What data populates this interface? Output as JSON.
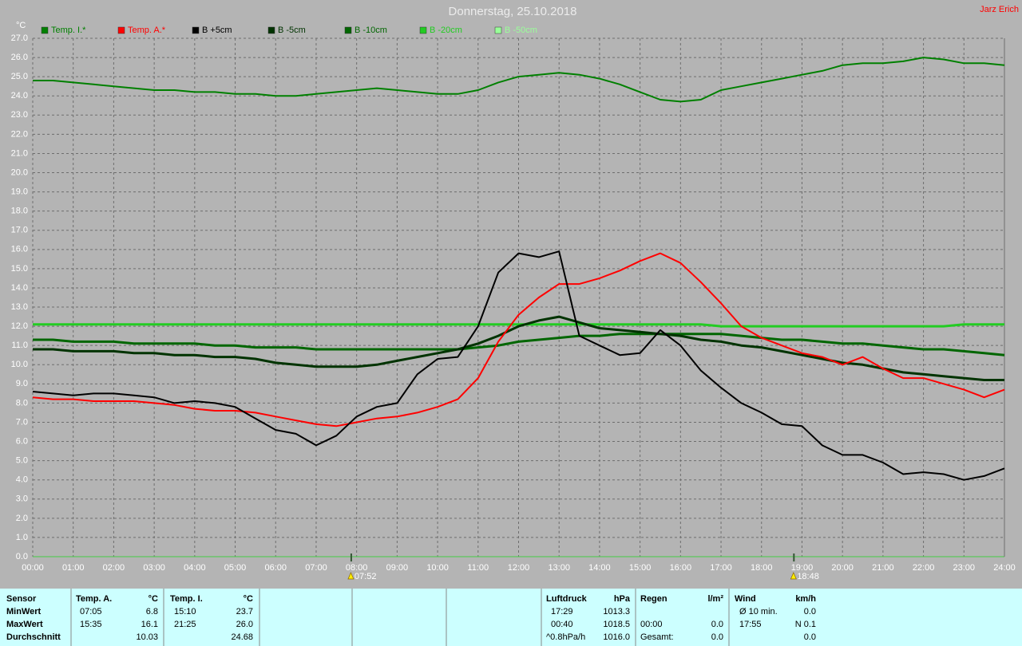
{
  "chart_data": {
    "type": "line",
    "title": "Donnerstag, 25.10.2018",
    "user": "Jarz Erich",
    "y_label": "°C",
    "grid": true,
    "x": [
      0,
      0.5,
      1,
      1.5,
      2,
      2.5,
      3,
      3.5,
      4,
      4.5,
      5,
      5.5,
      6,
      6.5,
      7,
      7.5,
      8,
      8.5,
      9,
      9.5,
      10,
      10.5,
      11,
      11.5,
      12,
      12.5,
      13,
      13.5,
      14,
      14.5,
      15,
      15.5,
      16,
      16.5,
      17,
      17.5,
      18,
      18.5,
      19,
      19.5,
      20,
      20.5,
      21,
      21.5,
      22,
      22.5,
      23,
      23.5,
      24
    ],
    "xlim": [
      0,
      24
    ],
    "xticks": [
      {
        "value": 0,
        "label": "00:00"
      },
      {
        "value": 1,
        "label": "01:00"
      },
      {
        "value": 2,
        "label": "02:00"
      },
      {
        "value": 3,
        "label": "03:00"
      },
      {
        "value": 4,
        "label": "04:00"
      },
      {
        "value": 5,
        "label": "05:00"
      },
      {
        "value": 6,
        "label": "06:00"
      },
      {
        "value": 7,
        "label": "07:00"
      },
      {
        "value": 8,
        "label": "08:00"
      },
      {
        "value": 9,
        "label": "09:00"
      },
      {
        "value": 10,
        "label": "10:00"
      },
      {
        "value": 11,
        "label": "11:00"
      },
      {
        "value": 12,
        "label": "12:00"
      },
      {
        "value": 13,
        "label": "13:00"
      },
      {
        "value": 14,
        "label": "14:00"
      },
      {
        "value": 15,
        "label": "15:00"
      },
      {
        "value": 16,
        "label": "16:00"
      },
      {
        "value": 17,
        "label": "17:00"
      },
      {
        "value": 18,
        "label": "18:00"
      },
      {
        "value": 19,
        "label": "19:00"
      },
      {
        "value": 20,
        "label": "20:00"
      },
      {
        "value": 21,
        "label": "21:00"
      },
      {
        "value": 22,
        "label": "22:00"
      },
      {
        "value": 23,
        "label": "23:00"
      },
      {
        "value": 24,
        "label": "24:00"
      }
    ],
    "ylim": [
      0,
      27
    ],
    "yticks": [
      {
        "value": 0,
        "label": "0.0"
      },
      {
        "value": 1,
        "label": "1.0"
      },
      {
        "value": 2,
        "label": "2.0"
      },
      {
        "value": 3,
        "label": "3.0"
      },
      {
        "value": 4,
        "label": "4.0"
      },
      {
        "value": 5,
        "label": "5.0"
      },
      {
        "value": 6,
        "label": "6.0"
      },
      {
        "value": 7,
        "label": "7.0"
      },
      {
        "value": 8,
        "label": "8.0"
      },
      {
        "value": 9,
        "label": "9.0"
      },
      {
        "value": 10,
        "label": "10.0"
      },
      {
        "value": 11,
        "label": "11.0"
      },
      {
        "value": 12,
        "label": "12.0"
      },
      {
        "value": 13,
        "label": "13.0"
      },
      {
        "value": 14,
        "label": "14.0"
      },
      {
        "value": 15,
        "label": "15.0"
      },
      {
        "value": 16,
        "label": "16.0"
      },
      {
        "value": 17,
        "label": "17.0"
      },
      {
        "value": 18,
        "label": "18.0"
      },
      {
        "value": 19,
        "label": "19.0"
      },
      {
        "value": 20,
        "label": "20.0"
      },
      {
        "value": 21,
        "label": "21.0"
      },
      {
        "value": 22,
        "label": "22.0"
      },
      {
        "value": 23,
        "label": "23.0"
      },
      {
        "value": 24,
        "label": "24.0"
      },
      {
        "value": 25,
        "label": "25.0"
      },
      {
        "value": 26,
        "label": "26.0"
      },
      {
        "value": 27,
        "label": "27.0"
      }
    ],
    "series": [
      {
        "name": "Temp. I.*",
        "color": "#008000",
        "values": [
          24.8,
          24.8,
          24.7,
          24.6,
          24.5,
          24.4,
          24.3,
          24.3,
          24.2,
          24.2,
          24.1,
          24.1,
          24.0,
          24.0,
          24.1,
          24.2,
          24.3,
          24.4,
          24.3,
          24.2,
          24.1,
          24.1,
          24.3,
          24.7,
          25.0,
          25.1,
          25.2,
          25.1,
          24.9,
          24.6,
          24.2,
          23.8,
          23.7,
          23.8,
          24.3,
          24.5,
          24.7,
          24.9,
          25.1,
          25.3,
          25.6,
          25.7,
          25.7,
          25.8,
          26.0,
          25.9,
          25.7,
          25.7,
          25.6
        ]
      },
      {
        "name": "Temp. A.*",
        "color": "#ff0000",
        "values": [
          8.3,
          8.2,
          8.2,
          8.1,
          8.1,
          8.1,
          8.0,
          7.9,
          7.7,
          7.6,
          7.6,
          7.5,
          7.3,
          7.1,
          6.9,
          6.8,
          7.0,
          7.2,
          7.3,
          7.5,
          7.8,
          8.2,
          9.3,
          11.2,
          12.6,
          13.5,
          14.2,
          14.2,
          14.5,
          14.9,
          15.4,
          15.8,
          15.3,
          14.3,
          13.2,
          12.0,
          11.4,
          11.0,
          10.6,
          10.4,
          10.0,
          10.4,
          9.8,
          9.3,
          9.3,
          9.0,
          8.7,
          8.3,
          8.7
        ]
      },
      {
        "name": "B +5cm",
        "color": "#000000",
        "values": [
          8.6,
          8.5,
          8.4,
          8.5,
          8.5,
          8.4,
          8.3,
          8.0,
          8.1,
          8.0,
          7.8,
          7.2,
          6.6,
          6.4,
          5.8,
          6.3,
          7.3,
          7.8,
          8.0,
          9.5,
          10.3,
          10.4,
          12.0,
          14.8,
          15.8,
          15.6,
          15.9,
          11.5,
          11.0,
          10.5,
          10.6,
          11.8,
          11.0,
          9.7,
          8.8,
          8.0,
          7.5,
          6.9,
          6.8,
          5.8,
          5.3,
          5.3,
          4.9,
          4.3,
          4.4,
          4.3,
          4.0,
          4.2,
          4.6
        ]
      },
      {
        "name": "B -5cm",
        "color": "#003300",
        "values": [
          10.8,
          10.8,
          10.7,
          10.7,
          10.7,
          10.6,
          10.6,
          10.5,
          10.5,
          10.4,
          10.4,
          10.3,
          10.1,
          10.0,
          9.9,
          9.9,
          9.9,
          10.0,
          10.2,
          10.4,
          10.6,
          10.8,
          11.1,
          11.5,
          12.0,
          12.3,
          12.5,
          12.2,
          11.9,
          11.8,
          11.7,
          11.6,
          11.5,
          11.3,
          11.2,
          11.0,
          10.9,
          10.7,
          10.5,
          10.3,
          10.1,
          10.0,
          9.8,
          9.6,
          9.5,
          9.4,
          9.3,
          9.2,
          9.2
        ]
      },
      {
        "name": "B -10cm",
        "color": "#006600",
        "values": [
          11.3,
          11.3,
          11.2,
          11.2,
          11.2,
          11.1,
          11.1,
          11.1,
          11.1,
          11.0,
          11.0,
          10.9,
          10.9,
          10.9,
          10.8,
          10.8,
          10.8,
          10.8,
          10.8,
          10.8,
          10.8,
          10.8,
          10.9,
          11.0,
          11.2,
          11.3,
          11.4,
          11.5,
          11.5,
          11.6,
          11.6,
          11.6,
          11.6,
          11.6,
          11.6,
          11.5,
          11.4,
          11.3,
          11.3,
          11.2,
          11.1,
          11.1,
          11.0,
          10.9,
          10.8,
          10.8,
          10.7,
          10.6,
          10.5
        ]
      },
      {
        "name": "B -20cm",
        "color": "#22cc22",
        "values": [
          12.1,
          12.1,
          12.1,
          12.1,
          12.1,
          12.1,
          12.1,
          12.1,
          12.1,
          12.1,
          12.1,
          12.1,
          12.1,
          12.1,
          12.1,
          12.1,
          12.1,
          12.1,
          12.1,
          12.1,
          12.1,
          12.1,
          12.1,
          12.1,
          12.1,
          12.1,
          12.1,
          12.1,
          12.1,
          12.1,
          12.1,
          12.1,
          12.1,
          12.1,
          12.0,
          12.0,
          12.0,
          12.0,
          12.0,
          12.0,
          12.0,
          12.0,
          12.0,
          12.0,
          12.0,
          12.0,
          12.1,
          12.1,
          12.1
        ]
      },
      {
        "name": "B -50cm",
        "color": "#99ff99",
        "values": [
          null,
          null,
          null,
          null,
          null,
          null,
          null,
          null,
          null,
          null,
          null,
          null,
          null,
          null,
          null,
          null,
          null,
          null,
          null,
          null,
          null,
          null,
          null,
          null,
          null,
          null,
          null,
          null,
          null,
          null,
          null,
          null,
          null,
          null,
          null,
          null,
          null,
          null,
          null,
          null,
          null,
          null,
          null,
          null,
          null,
          null,
          null,
          null,
          null
        ]
      }
    ],
    "annotations": [
      {
        "x": 7.867,
        "label": "07:52"
      },
      {
        "x": 18.8,
        "label": "18:48"
      }
    ]
  },
  "table": {
    "rows": [
      [
        "Sensor",
        "Temp. A.",
        "°C",
        "Temp. I.",
        "°C",
        "Luftdruck",
        "hPa",
        "Regen",
        "l/m²",
        "Wind",
        "km/h"
      ],
      [
        "MinWert",
        "07:05",
        "6.8",
        "15:10",
        "23.7",
        "17:29",
        "1013.3",
        null,
        null,
        "Ø 10 min.",
        "0.0"
      ],
      [
        "MaxWert",
        "15:35",
        "16.1",
        "21:25",
        "26.0",
        "00:40",
        "1018.5",
        "00:00",
        "0.0",
        "17:55",
        "N 0.1"
      ],
      [
        "Durchschnitt",
        null,
        "10.03",
        null,
        "24.68",
        "^0.8hPa/h",
        "1016.0",
        "Gesamt:",
        "0.0",
        null,
        "0.0"
      ]
    ]
  }
}
